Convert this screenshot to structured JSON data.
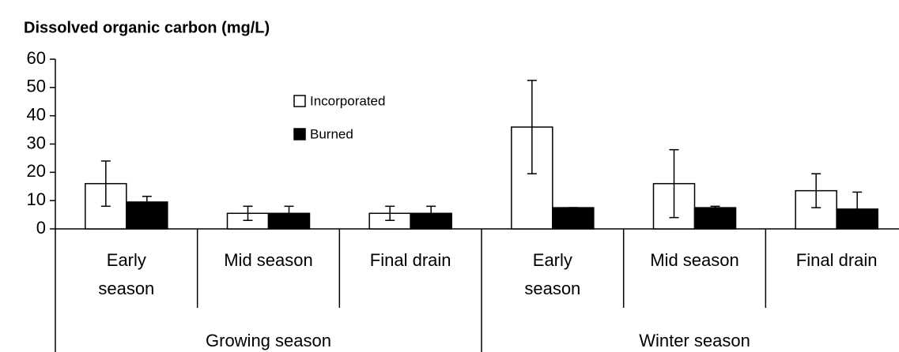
{
  "chart_data": {
    "type": "bar",
    "title": "Dissolved organic carbon (mg/L)",
    "categories": [
      "Early\nseason",
      "Mid season",
      "Final drain",
      "Early\nseason",
      "Mid season",
      "Final drain"
    ],
    "super_categories": [
      "Growing season",
      "Winter season"
    ],
    "series": [
      {
        "name": "Incorporated",
        "color": "#ffffff",
        "values": [
          16,
          5.5,
          5.5,
          36,
          16,
          13.5
        ],
        "errors": [
          8,
          2.5,
          2.5,
          16.5,
          12,
          6
        ]
      },
      {
        "name": "Burned",
        "color": "#000000",
        "values": [
          9.5,
          5.5,
          5.5,
          7.5,
          7.5,
          7
        ],
        "errors": [
          2,
          2.5,
          2.5,
          0,
          0.5,
          6
        ]
      }
    ],
    "ylim": [
      0,
      60
    ],
    "yticks": [
      0,
      10,
      20,
      30,
      40,
      50,
      60
    ],
    "grid": false
  }
}
